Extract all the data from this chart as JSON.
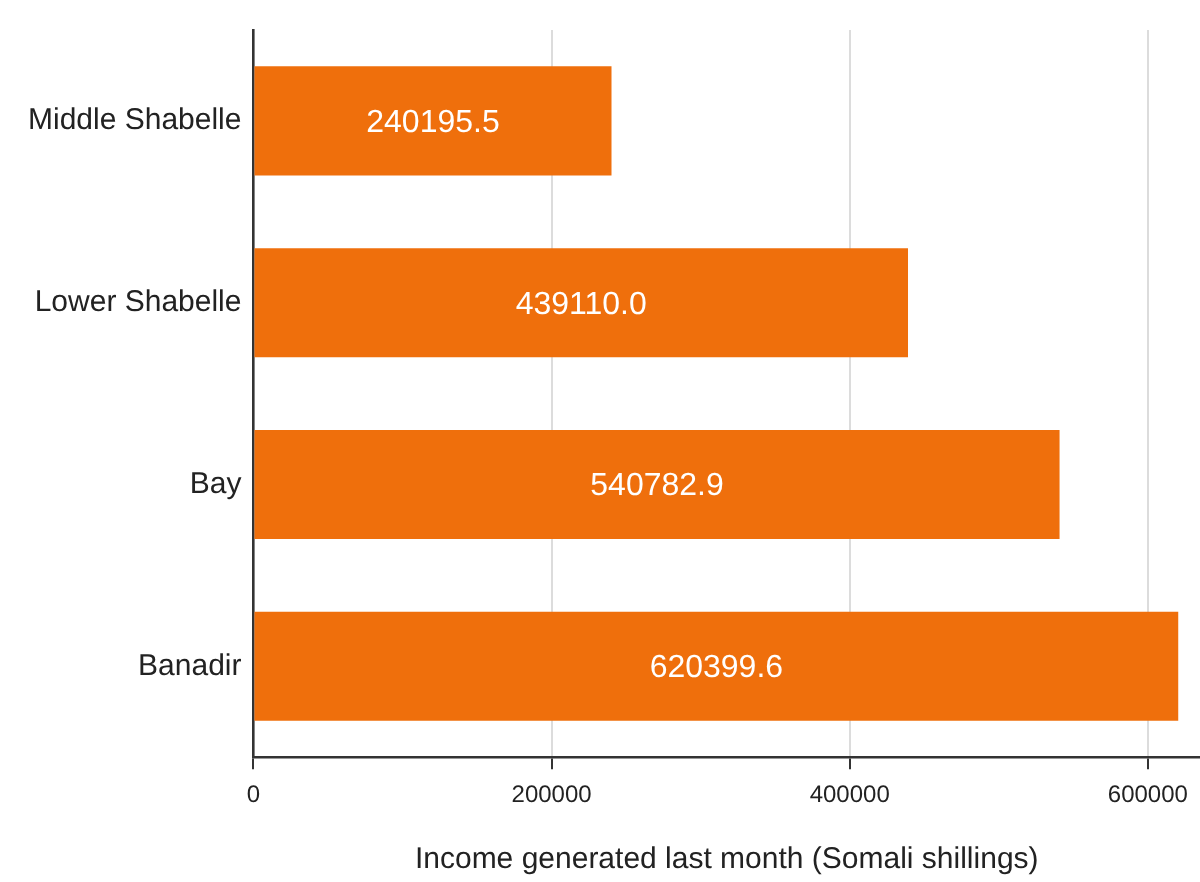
{
  "chart_data": {
    "type": "bar",
    "orientation": "horizontal",
    "categories": [
      "Middle Shabelle",
      "Lower Shabelle",
      "Bay",
      "Banadir"
    ],
    "values": [
      240195.5,
      439110.0,
      540782.9,
      620399.6
    ],
    "value_labels": [
      "240195.5",
      "439110.0",
      "540782.9",
      "620399.6"
    ],
    "color": "#ef6f0c",
    "xlabel": "Income generated last month (Somali shillings)",
    "xlim": [
      0,
      635000
    ],
    "xticks": [
      0,
      200000,
      400000,
      600000
    ],
    "grid": "x"
  }
}
